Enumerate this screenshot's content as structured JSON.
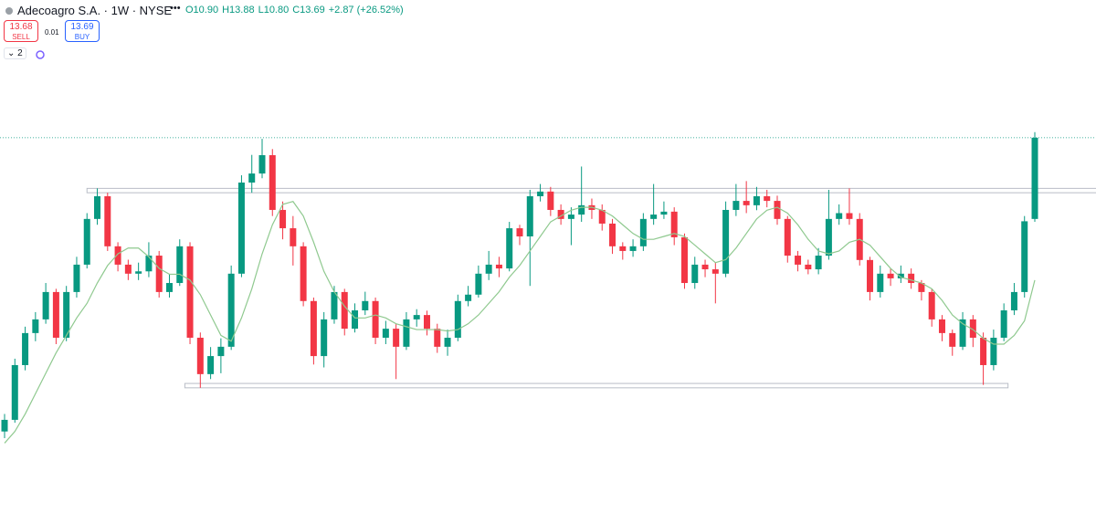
{
  "chart_data": {
    "type": "candlestick",
    "symbol": "Adecoagro S.A. · 1W · NYSE",
    "ohlc_labels": [
      "O10.90",
      "H13.88",
      "L10.80",
      "C13.69"
    ],
    "change": "+2.87 (+26.52%)",
    "sell_price": 13.68,
    "sell_label": "SELL",
    "spread": 0.01,
    "buy_price": 13.69,
    "buy_label": "BUY",
    "indicator_count": 2,
    "up_color": "#089981",
    "down_color": "#f23645",
    "ma_color": "#8fc98f",
    "ylim": [
      0.8,
      18.42
    ],
    "open": [
      3.6,
      4.0,
      5.88,
      6.98,
      7.45,
      8.39,
      6.82,
      8.39,
      9.33,
      10.9,
      11.68,
      9.96,
      9.33,
      9.02,
      9.1,
      9.64,
      8.39,
      8.7,
      9.96,
      6.82,
      5.57,
      6.19,
      6.51,
      9.02,
      12.15,
      12.46,
      13.09,
      11.21,
      10.58,
      9.96,
      8.08,
      6.19,
      7.45,
      8.39,
      7.13,
      7.76,
      8.08,
      6.82,
      7.13,
      6.51,
      7.45,
      7.6,
      7.13,
      6.51,
      6.82,
      8.08,
      8.3,
      9.02,
      9.33,
      9.2,
      10.58,
      10.3,
      11.68,
      11.84,
      11.21,
      10.9,
      11.05,
      11.37,
      11.21,
      10.74,
      9.96,
      9.8,
      9.96,
      10.9,
      11.05,
      11.15,
      10.27,
      8.7,
      9.33,
      9.17,
      9.02,
      11.21,
      11.52,
      11.37,
      11.68,
      11.52,
      10.9,
      9.64,
      9.33,
      9.17,
      9.64,
      10.9,
      11.1,
      10.9,
      9.49,
      8.39,
      9.02,
      8.86,
      9.02,
      8.7,
      8.39,
      7.45,
      6.98,
      6.51,
      7.45,
      6.82,
      5.88,
      6.82,
      7.76,
      8.39,
      10.9
    ],
    "high": [
      4.2,
      6.1,
      7.2,
      7.7,
      8.7,
      8.5,
      8.6,
      9.6,
      11.1,
      11.95,
      11.8,
      10.1,
      9.5,
      9.4,
      10.1,
      9.8,
      9.0,
      10.2,
      10.1,
      7.0,
      6.5,
      6.8,
      9.3,
      12.4,
      13.1,
      13.65,
      13.3,
      11.5,
      11.0,
      10.1,
      8.2,
      7.7,
      8.6,
      8.5,
      8.0,
      8.4,
      8.2,
      7.4,
      7.3,
      7.7,
      7.8,
      7.75,
      7.3,
      7.1,
      8.3,
      8.6,
      9.3,
      9.8,
      9.6,
      10.8,
      10.7,
      11.9,
      12.1,
      12.0,
      11.4,
      11.3,
      12.7,
      11.6,
      11.4,
      10.9,
      10.1,
      10.2,
      11.1,
      12.1,
      11.5,
      11.3,
      10.4,
      9.6,
      9.5,
      9.4,
      11.5,
      12.1,
      12.2,
      12.0,
      11.9,
      11.7,
      11.0,
      9.8,
      9.5,
      9.9,
      11.9,
      11.4,
      11.95,
      11.1,
      9.6,
      9.3,
      9.2,
      9.3,
      9.2,
      8.8,
      8.5,
      7.6,
      7.1,
      7.7,
      7.6,
      7.0,
      7.1,
      8.0,
      8.7,
      11.0,
      13.88
    ],
    "low": [
      3.37,
      3.9,
      5.7,
      6.7,
      7.3,
      6.6,
      6.7,
      8.2,
      9.2,
      10.7,
      9.8,
      9.1,
      8.8,
      8.8,
      8.9,
      8.2,
      8.2,
      8.6,
      6.6,
      5.1,
      5.4,
      5.6,
      6.4,
      8.9,
      11.8,
      12.3,
      11.0,
      10.2,
      9.3,
      7.9,
      5.9,
      5.8,
      7.3,
      6.9,
      7.0,
      7.6,
      6.6,
      6.6,
      5.4,
      6.4,
      7.2,
      6.9,
      6.3,
      6.2,
      6.7,
      7.9,
      8.2,
      8.8,
      8.9,
      9.1,
      10.0,
      8.6,
      11.5,
      11.0,
      10.7,
      10.0,
      10.8,
      10.9,
      10.5,
      9.7,
      9.5,
      9.6,
      9.8,
      10.7,
      10.9,
      10.0,
      8.5,
      8.5,
      8.9,
      8.0,
      8.9,
      11.0,
      11.1,
      11.2,
      11.3,
      10.7,
      9.4,
      9.1,
      9.0,
      9.0,
      9.5,
      10.7,
      10.7,
      9.3,
      8.1,
      8.2,
      8.6,
      8.7,
      8.5,
      8.1,
      7.2,
      6.7,
      6.2,
      6.4,
      6.5,
      5.2,
      5.7,
      6.7,
      7.6,
      8.2,
      10.8
    ],
    "close": [
      4.0,
      5.88,
      6.98,
      7.45,
      8.39,
      6.82,
      8.39,
      9.33,
      10.9,
      11.68,
      9.96,
      9.33,
      9.02,
      9.1,
      9.64,
      8.39,
      8.7,
      9.96,
      6.82,
      5.57,
      6.19,
      6.51,
      9.02,
      12.15,
      12.46,
      13.09,
      11.21,
      10.58,
      9.96,
      8.08,
      6.19,
      7.45,
      8.39,
      7.13,
      7.76,
      8.08,
      6.82,
      7.13,
      6.51,
      7.45,
      7.6,
      7.13,
      6.51,
      6.82,
      8.08,
      8.3,
      9.02,
      9.33,
      9.2,
      10.58,
      10.3,
      11.68,
      11.84,
      11.21,
      10.9,
      11.05,
      11.37,
      11.21,
      10.74,
      9.96,
      9.8,
      9.96,
      10.9,
      11.05,
      11.15,
      10.27,
      8.7,
      9.33,
      9.17,
      9.02,
      11.21,
      11.52,
      11.37,
      11.68,
      11.52,
      10.9,
      9.64,
      9.33,
      9.17,
      9.64,
      10.9,
      11.1,
      10.9,
      9.49,
      8.39,
      9.02,
      8.86,
      9.02,
      8.7,
      8.39,
      7.45,
      6.98,
      6.51,
      7.45,
      6.82,
      5.88,
      6.82,
      7.76,
      8.39,
      10.82,
      13.69
    ],
    "ma": [
      3.2,
      3.6,
      4.2,
      4.9,
      5.6,
      6.3,
      6.9,
      7.5,
      8.0,
      8.7,
      9.3,
      9.7,
      9.9,
      9.9,
      9.6,
      9.2,
      9.0,
      9.0,
      8.8,
      8.3,
      7.6,
      6.9,
      6.7,
      7.5,
      8.5,
      9.7,
      10.7,
      11.4,
      11.5,
      11.0,
      10.1,
      9.1,
      8.4,
      7.9,
      7.5,
      7.5,
      7.6,
      7.5,
      7.3,
      7.2,
      7.1,
      7.1,
      7.1,
      7.05,
      7.1,
      7.3,
      7.6,
      8.0,
      8.4,
      8.9,
      9.3,
      9.8,
      10.3,
      10.8,
      11.0,
      11.2,
      11.3,
      11.3,
      11.2,
      11.0,
      10.7,
      10.4,
      10.2,
      10.2,
      10.3,
      10.4,
      10.3,
      10.0,
      9.7,
      9.4,
      9.5,
      9.9,
      10.4,
      10.9,
      11.2,
      11.3,
      11.1,
      10.7,
      10.2,
      9.8,
      9.7,
      9.8,
      10.1,
      10.2,
      10.0,
      9.6,
      9.2,
      8.9,
      8.8,
      8.7,
      8.5,
      8.1,
      7.6,
      7.3,
      7.1,
      6.8,
      6.6,
      6.6,
      6.9,
      7.4,
      8.8
    ],
    "zones": [
      {
        "low": 11.8,
        "high": 11.95,
        "start": 8,
        "end": 106
      },
      {
        "low": 5.1,
        "high": 5.25,
        "start": 17.5,
        "end": 97.4
      }
    ]
  }
}
